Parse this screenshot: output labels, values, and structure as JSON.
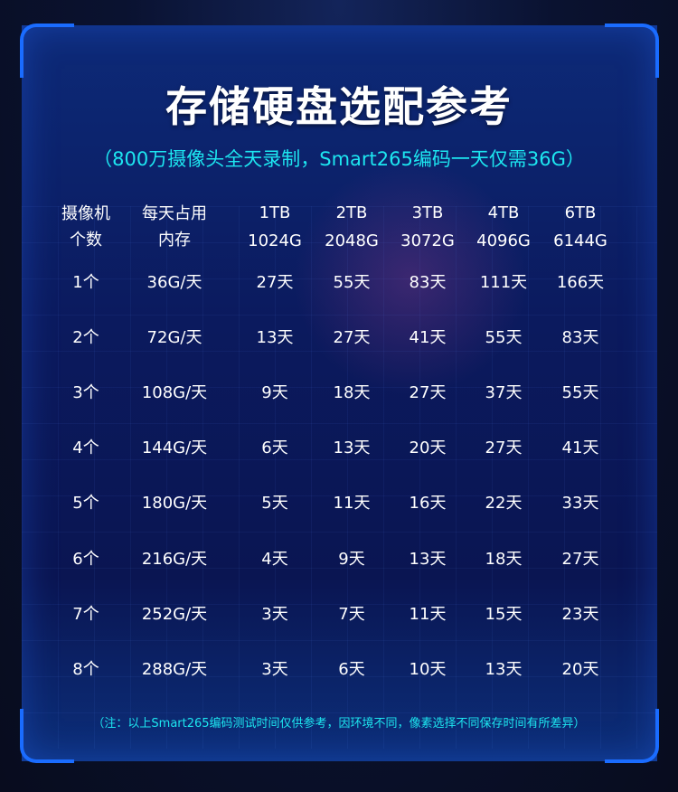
{
  "title": "存储硬盘选配参考",
  "subtitle": "（800万摄像头全天录制，Smart265编码一天仅需36G）",
  "columns": [
    {
      "line1": "摄像机",
      "line2": "个数"
    },
    {
      "line1": "每天占用",
      "line2": "内存"
    },
    {
      "line1": "1TB",
      "line2": "1024G"
    },
    {
      "line1": "2TB",
      "line2": "2048G"
    },
    {
      "line1": "3TB",
      "line2": "3072G"
    },
    {
      "line1": "4TB",
      "line2": "4096G"
    },
    {
      "line1": "6TB",
      "line2": "6144G"
    }
  ],
  "rows": [
    [
      "1个",
      "36G/天",
      "27天",
      "55天",
      "83天",
      "111天",
      "166天"
    ],
    [
      "2个",
      "72G/天",
      "13天",
      "27天",
      "41天",
      "55天",
      "83天"
    ],
    [
      "3个",
      "108G/天",
      "9天",
      "18天",
      "27天",
      "37天",
      "55天"
    ],
    [
      "4个",
      "144G/天",
      "6天",
      "13天",
      "20天",
      "27天",
      "41天"
    ],
    [
      "5个",
      "180G/天",
      "5天",
      "11天",
      "16天",
      "22天",
      "33天"
    ],
    [
      "6个",
      "216G/天",
      "4天",
      "9天",
      "13天",
      "18天",
      "27天"
    ],
    [
      "7个",
      "252G/天",
      "3天",
      "7天",
      "11天",
      "15天",
      "23天"
    ],
    [
      "8个",
      "288G/天",
      "3天",
      "6天",
      "10天",
      "13天",
      "20天"
    ]
  ],
  "note": "（注：以上Smart265编码测试时间仅供参考，因环境不同，像素选择不同保存时间有所差异）",
  "colors": {
    "accent": "#1a6cff",
    "subtitle": "#1de6f0",
    "panel": "#0b1a5e"
  }
}
